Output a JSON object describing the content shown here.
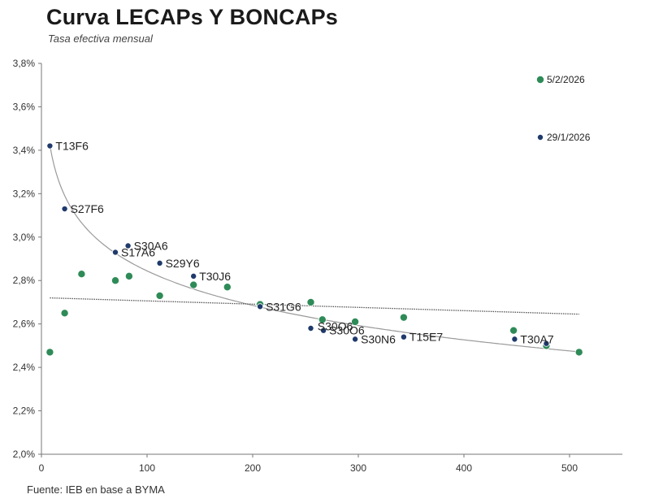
{
  "title": "Curva LECAPs Y BONCAPs",
  "subtitle": "Tasa efectiva mensual",
  "source": "Fuente: IEB en base a BYMA",
  "colors": {
    "navy": "#1f3a6b",
    "green": "#2e8b57",
    "trend": "#9a9a9a",
    "trend_flat": "#555555",
    "axis": "#777777"
  },
  "chart_data": {
    "type": "scatter",
    "title": "Curva LECAPs Y BONCAPs",
    "subtitle": "Tasa efectiva mensual",
    "xlim": [
      0,
      550
    ],
    "ylim": [
      2.0,
      3.8
    ],
    "x_ticks": [
      0,
      100,
      200,
      300,
      400,
      500
    ],
    "y_ticks": [
      2.0,
      2.2,
      2.4,
      2.6,
      2.8,
      3.0,
      3.2,
      3.4,
      3.6,
      3.8
    ],
    "x_tick_labels": [
      "0",
      "100",
      "200",
      "300",
      "400",
      "500"
    ],
    "y_tick_labels": [
      "2,0%",
      "2,2%",
      "2,4%",
      "2,6%",
      "2,8%",
      "3,0%",
      "3,2%",
      "3,4%",
      "3,6%",
      "3,8%"
    ],
    "grid": false,
    "legend": [
      {
        "name": "5/2/2026",
        "color": "#2e8b57"
      },
      {
        "name": "29/1/2026",
        "color": "#1f3a6b"
      }
    ],
    "series": [
      {
        "name": "29/1/2026",
        "color": "#1f3a6b",
        "points": [
          {
            "x": 8,
            "y": 3.42,
            "label": "T13F6"
          },
          {
            "x": 22,
            "y": 3.13,
            "label": "S27F6"
          },
          {
            "x": 70,
            "y": 2.93,
            "label": "S17A6"
          },
          {
            "x": 82,
            "y": 2.96,
            "label": "S30A6"
          },
          {
            "x": 112,
            "y": 2.88,
            "label": "S29Y6"
          },
          {
            "x": 144,
            "y": 2.82,
            "label": "T30J6"
          },
          {
            "x": 207,
            "y": 2.68,
            "label": "S31G6"
          },
          {
            "x": 255,
            "y": 2.58,
            "label": ""
          },
          {
            "x": 267,
            "y": 2.57,
            "label": "S30O6"
          },
          {
            "x": 297,
            "y": 2.53,
            "label": "S30N6"
          },
          {
            "x": 343,
            "y": 2.54,
            "label": "T15E7"
          },
          {
            "x": 448,
            "y": 2.53,
            "label": "T30A7"
          },
          {
            "x": 478,
            "y": 2.51,
            "label": ""
          }
        ]
      },
      {
        "name": "5/2/2026",
        "color": "#2e8b57",
        "points": [
          {
            "x": 8,
            "y": 2.47
          },
          {
            "x": 22,
            "y": 2.65
          },
          {
            "x": 38,
            "y": 2.83
          },
          {
            "x": 70,
            "y": 2.8
          },
          {
            "x": 83,
            "y": 2.82
          },
          {
            "x": 112,
            "y": 2.73
          },
          {
            "x": 144,
            "y": 2.78
          },
          {
            "x": 176,
            "y": 2.77
          },
          {
            "x": 207,
            "y": 2.69
          },
          {
            "x": 255,
            "y": 2.7
          },
          {
            "x": 266,
            "y": 2.62
          },
          {
            "x": 297,
            "y": 2.61
          },
          {
            "x": 343,
            "y": 2.63
          },
          {
            "x": 447,
            "y": 2.57
          },
          {
            "x": 478,
            "y": 2.5
          },
          {
            "x": 509,
            "y": 2.47
          }
        ]
      }
    ],
    "trendlines": [
      {
        "type": "logarithmic",
        "series": "29/1/2026",
        "from_x": 8,
        "to_x": 509
      },
      {
        "type": "linear",
        "series": "5/2/2026",
        "from_x": 8,
        "to_x": 509,
        "y_start": 2.72,
        "y_end": 2.645
      }
    ],
    "extra_labels": [
      {
        "x": 266,
        "y": 2.59,
        "text": "S30O6"
      }
    ]
  }
}
